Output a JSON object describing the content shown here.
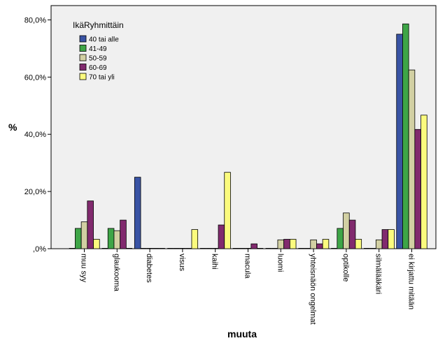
{
  "chart_data": {
    "type": "bar",
    "xlabel": "muuta",
    "ylabel": "%",
    "ylim": [
      0,
      85
    ],
    "yticks": [
      0,
      20,
      40,
      60,
      80
    ],
    "ytick_labels": [
      ",0%",
      "20,0%",
      "40,0%",
      "60,0%",
      "80,0%"
    ],
    "categories": [
      "muu syy",
      "glaukooma",
      "diabetes",
      "visus",
      "kaihi",
      "macula",
      "luomi",
      "yhteisnäön ongelmat",
      "optikolle",
      "silmälääkäri",
      "ei kirjattu mitään"
    ],
    "legend_title": "IkäRyhmittäin",
    "legend_position": "top-left",
    "series": [
      {
        "name": "40 tai alle",
        "color": "#3953a4",
        "values": [
          0,
          0,
          25.0,
          0,
          0,
          0,
          0,
          0,
          0,
          0,
          75.0
        ]
      },
      {
        "name": "41-49",
        "color": "#3ea547",
        "values": [
          7.1,
          7.1,
          0,
          0,
          0,
          0,
          0,
          0,
          7.1,
          0,
          78.6
        ]
      },
      {
        "name": "50-59",
        "color": "#d2d0a3",
        "values": [
          9.4,
          6.3,
          0,
          0,
          0,
          0,
          3.1,
          3.1,
          12.5,
          3.1,
          62.5
        ]
      },
      {
        "name": "60-69",
        "color": "#812a6e",
        "values": [
          16.7,
          10.0,
          0,
          0,
          8.3,
          1.7,
          3.3,
          1.7,
          10.0,
          6.7,
          41.7
        ]
      },
      {
        "name": "70 tai yli",
        "color": "#fbfb7e",
        "values": [
          3.3,
          0,
          0,
          6.7,
          26.7,
          0,
          3.3,
          3.3,
          3.3,
          6.7,
          46.7
        ]
      }
    ],
    "grid": false,
    "plot_background": "#f0f0f0"
  }
}
